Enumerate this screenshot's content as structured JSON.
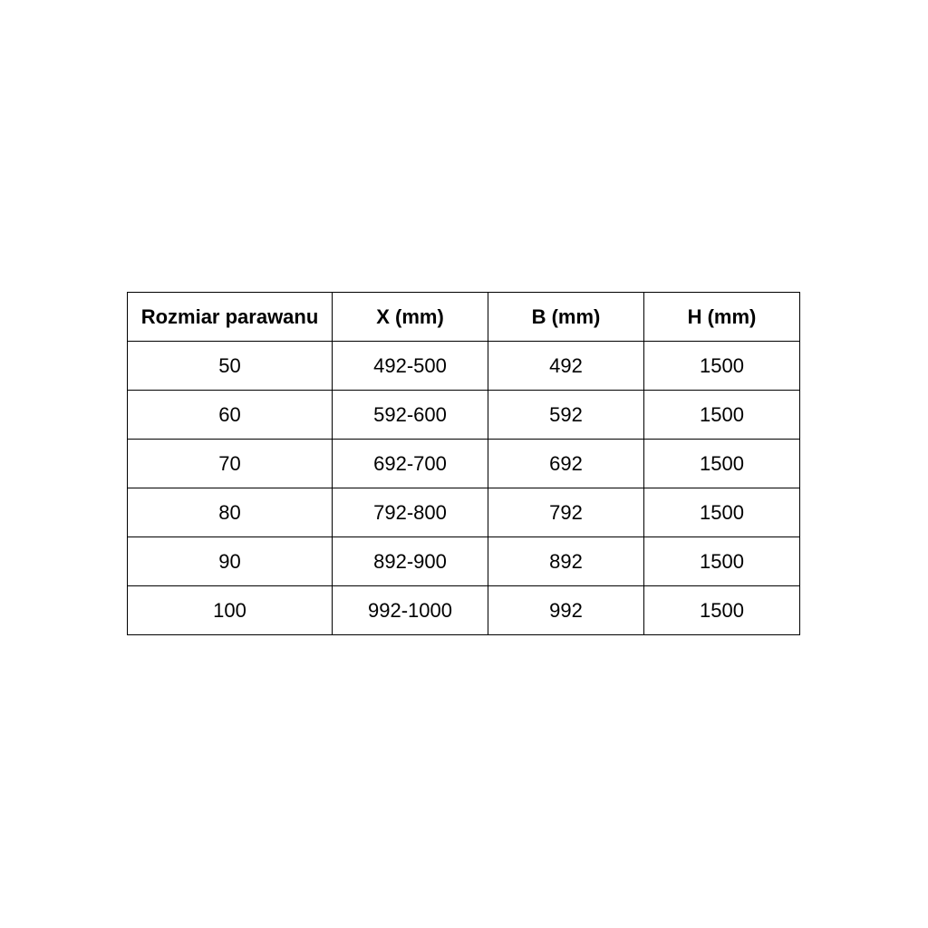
{
  "table": {
    "headers": [
      "Rozmiar parawanu",
      "X (mm)",
      "B (mm)",
      "H (mm)"
    ],
    "rows": [
      [
        "50",
        "492-500",
        "492",
        "1500"
      ],
      [
        "60",
        "592-600",
        "592",
        "1500"
      ],
      [
        "70",
        "692-700",
        "692",
        "1500"
      ],
      [
        "80",
        "792-800",
        "792",
        "1500"
      ],
      [
        "90",
        "892-900",
        "892",
        "1500"
      ],
      [
        "100",
        "992-1000",
        "992",
        "1500"
      ]
    ]
  }
}
